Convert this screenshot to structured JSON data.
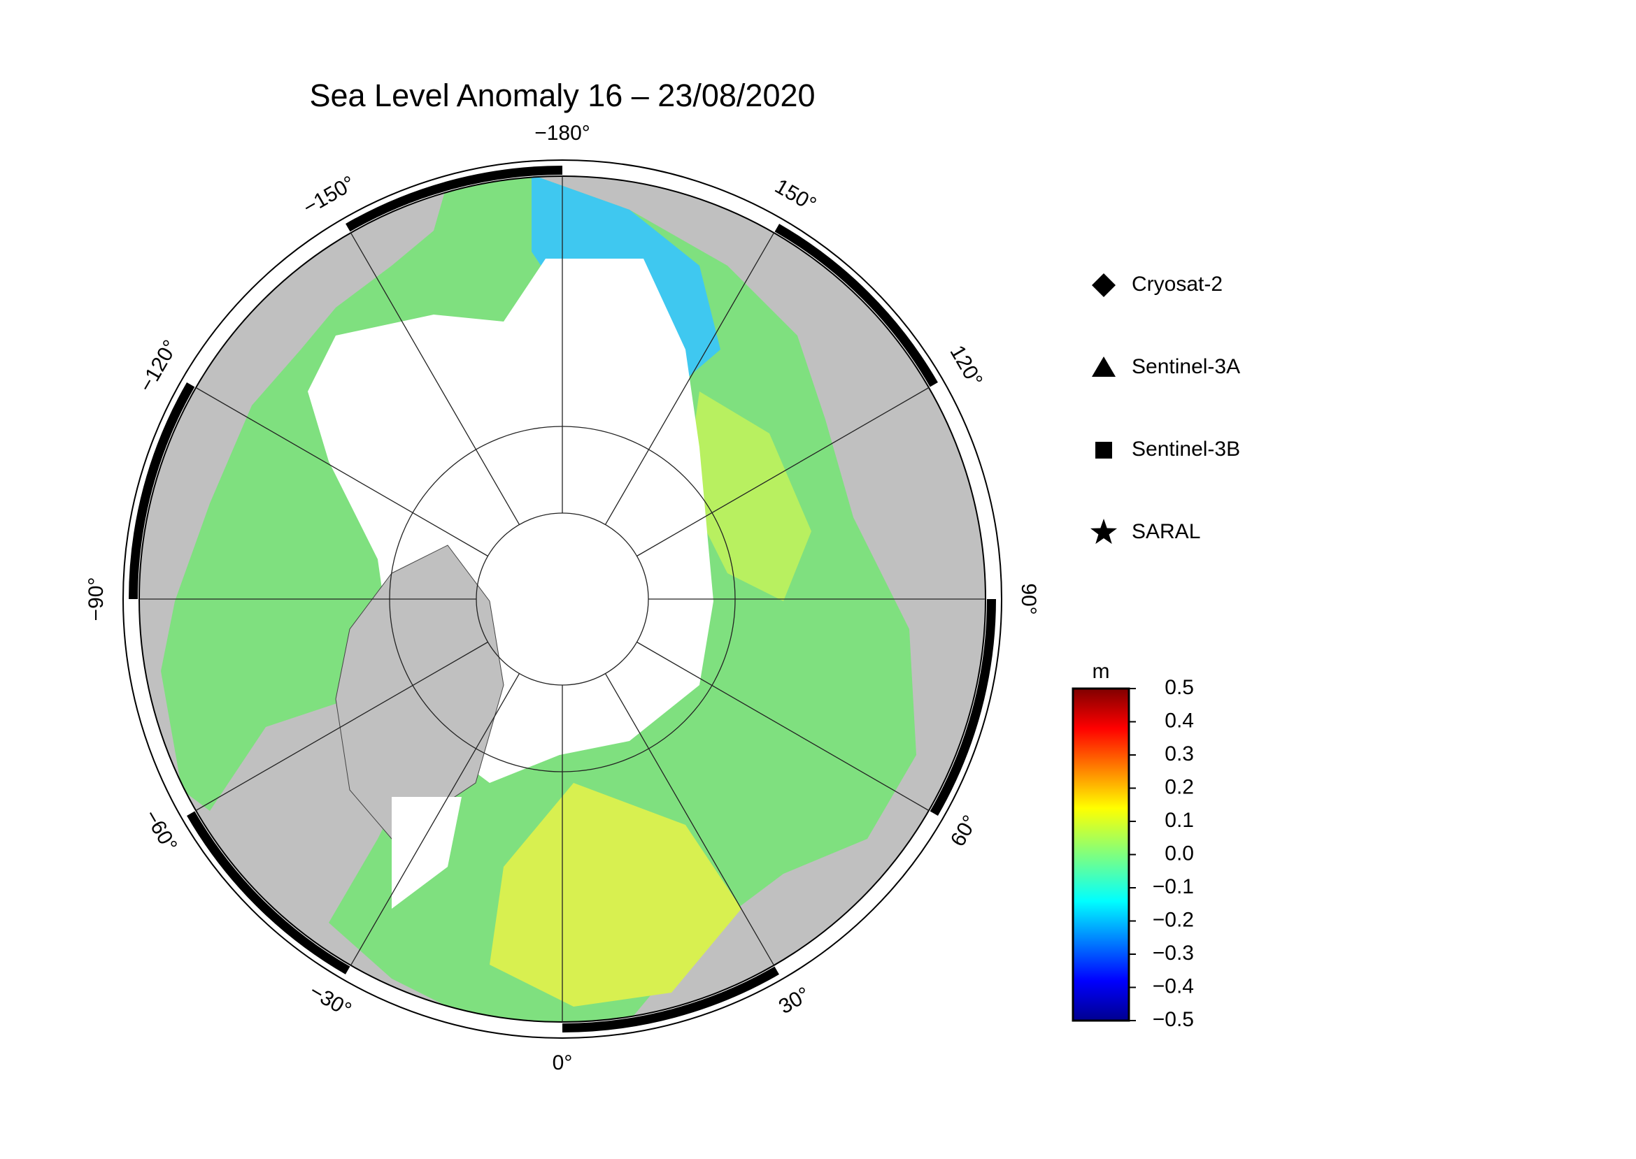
{
  "title": "Sea Level Anomaly 16 – 23/08/2020",
  "map": {
    "projection": "north-polar-stereographic",
    "longitude_labels": [
      {
        "value": -180,
        "label": "−180°"
      },
      {
        "value": -150,
        "label": "−150°"
      },
      {
        "value": -120,
        "label": "−120°"
      },
      {
        "value": -90,
        "label": "−90°"
      },
      {
        "value": -60,
        "label": "−60°"
      },
      {
        "value": -30,
        "label": "−30°"
      },
      {
        "value": 0,
        "label": "0°"
      },
      {
        "value": 30,
        "label": "30°"
      },
      {
        "value": 60,
        "label": "60°"
      },
      {
        "value": 90,
        "label": "90°"
      },
      {
        "value": 120,
        "label": "120°"
      },
      {
        "value": 150,
        "label": "150°"
      }
    ]
  },
  "legend": {
    "items": [
      {
        "label": "Cryosat-2",
        "marker": "diamond"
      },
      {
        "label": "Sentinel-3A",
        "marker": "triangle"
      },
      {
        "label": "Sentinel-3B",
        "marker": "square"
      },
      {
        "label": "SARAL",
        "marker": "star"
      }
    ]
  },
  "colorbar": {
    "unit": "m",
    "lim": [
      -0.5,
      0.5
    ],
    "ticks": [
      {
        "value": 0.5,
        "label": "0.5"
      },
      {
        "value": 0.4,
        "label": "0.4"
      },
      {
        "value": 0.3,
        "label": "0.3"
      },
      {
        "value": 0.2,
        "label": "0.2"
      },
      {
        "value": 0.1,
        "label": "0.1"
      },
      {
        "value": 0.0,
        "label": "0.0"
      },
      {
        "value": -0.1,
        "label": "−0.1"
      },
      {
        "value": -0.2,
        "label": "−0.2"
      },
      {
        "value": -0.3,
        "label": "−0.3"
      },
      {
        "value": -0.4,
        "label": "−0.4"
      },
      {
        "value": -0.5,
        "label": "−0.5"
      }
    ]
  }
}
